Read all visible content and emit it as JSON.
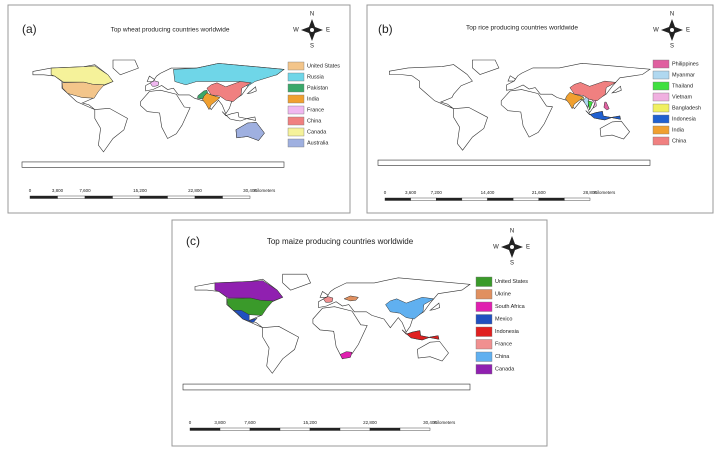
{
  "panels": [
    {
      "label": "(a)",
      "title": "Top wheat producing countries worldwide",
      "compass": {
        "n": "N",
        "s": "S",
        "e": "E",
        "w": "W"
      },
      "legend": [
        {
          "label": "United States",
          "color": "#f3c58a"
        },
        {
          "label": "Russia",
          "color": "#6fd6e8"
        },
        {
          "label": "Pakistan",
          "color": "#3aa86a"
        },
        {
          "label": "India",
          "color": "#f0a030"
        },
        {
          "label": "France",
          "color": "#f0b8f0"
        },
        {
          "label": "China",
          "color": "#f08080"
        },
        {
          "label": "Canada",
          "color": "#f5f29a"
        },
        {
          "label": "Australia",
          "color": "#9fb0e0"
        }
      ],
      "scale_bar": [
        "0",
        "3,800",
        "7,600",
        "15,200",
        "22,800",
        "30,400",
        "Kilometers"
      ]
    },
    {
      "label": "(b)",
      "title": "Top rice producing countries worldwide",
      "compass": {
        "n": "N",
        "s": "S",
        "e": "E",
        "w": "W"
      },
      "legend": [
        {
          "label": "Philippines",
          "color": "#e060a0"
        },
        {
          "label": "Myanmar",
          "color": "#b0d8f0"
        },
        {
          "label": "Thailand",
          "color": "#40e040"
        },
        {
          "label": "Vietnam",
          "color": "#f0b0e0"
        },
        {
          "label": "Bangladesh",
          "color": "#f0f060"
        },
        {
          "label": "Indonesia",
          "color": "#2060d0"
        },
        {
          "label": "India",
          "color": "#f0a030"
        },
        {
          "label": "China",
          "color": "#f08080"
        }
      ],
      "scale_bar": [
        "0",
        "3,600",
        "7,200",
        "14,400",
        "21,600",
        "28,800",
        "Kilometers"
      ]
    },
    {
      "label": "(c)",
      "title": "Top maize producing countries worldwide",
      "compass": {
        "n": "N",
        "s": "S",
        "e": "E",
        "w": "W"
      },
      "legend": [
        {
          "label": "United States",
          "color": "#3a9a2a"
        },
        {
          "label": "Ukrine",
          "color": "#e09060"
        },
        {
          "label": "South Africa",
          "color": "#e020b0"
        },
        {
          "label": "Mexico",
          "color": "#2050c0"
        },
        {
          "label": "Indonesia",
          "color": "#e02020"
        },
        {
          "label": "France",
          "color": "#f09090"
        },
        {
          "label": "China",
          "color": "#60b0f0"
        },
        {
          "label": "Canada",
          "color": "#9020b0"
        }
      ],
      "scale_bar": [
        "0",
        "3,800",
        "7,600",
        "15,200",
        "22,800",
        "30,400",
        "Kilometers"
      ]
    }
  ]
}
